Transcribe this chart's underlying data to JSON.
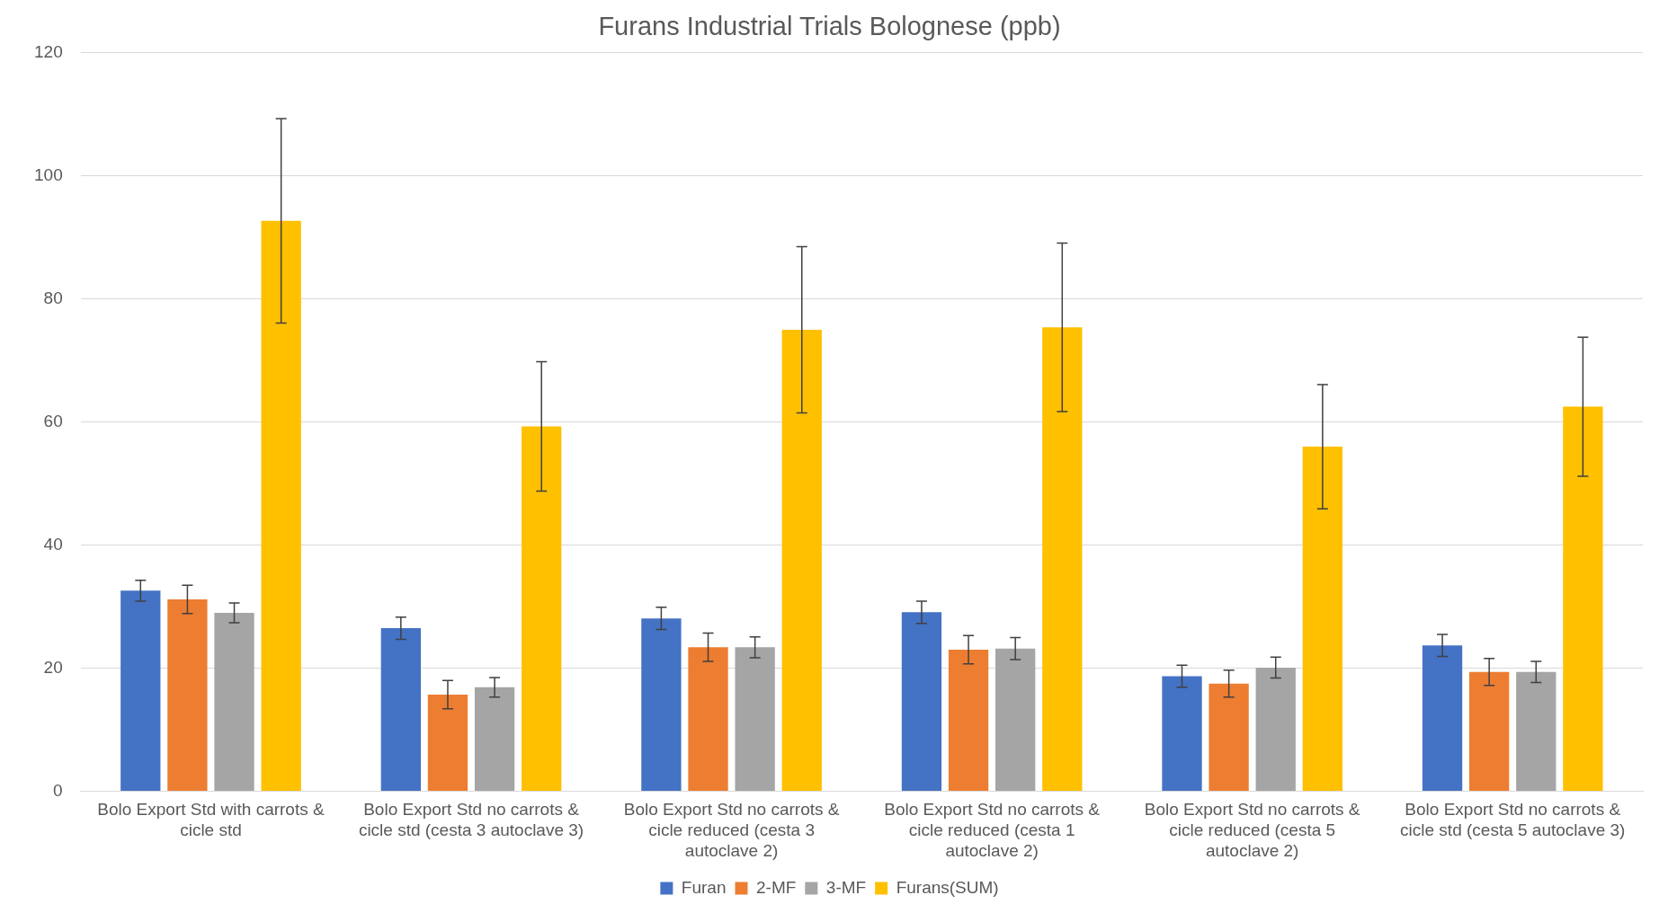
{
  "chart_data": {
    "type": "bar",
    "title": "Furans Industrial Trials Bolognese (ppb)",
    "categories": [
      "Bolo Export Std with carrots & cicle std",
      "Bolo Export Std no carrots & cicle std (cesta 3 autoclave 3)",
      "Bolo Export Std no carrots & cicle reduced (cesta 3 autoclave 2)",
      "Bolo Export Std no carrots & cicle reduced (cesta 1 autoclave 2)",
      "Bolo Export Std no carrots & cicle reduced (cesta 5 autoclave 2)",
      "Bolo Export Std no carrots & cicle std (cesta 5 autoclave 3)"
    ],
    "series": [
      {
        "name": "Furan",
        "color": "#4472c4",
        "values": [
          32.6,
          26.5,
          28.1,
          29.1,
          18.7,
          23.7
        ],
        "errors": [
          1.7,
          1.8,
          1.8,
          1.8,
          1.8,
          1.8
        ]
      },
      {
        "name": "2-MF",
        "color": "#ed7d31",
        "values": [
          31.2,
          15.7,
          23.4,
          23.0,
          17.5,
          19.4
        ],
        "errors": [
          2.3,
          2.3,
          2.3,
          2.3,
          2.2,
          2.2
        ]
      },
      {
        "name": "3-MF",
        "color": "#a5a5a5",
        "values": [
          29.0,
          16.9,
          23.4,
          23.2,
          20.1,
          19.4
        ],
        "errors": [
          1.6,
          1.6,
          1.7,
          1.8,
          1.7,
          1.7
        ]
      },
      {
        "name": "Furans(SUM)",
        "color": "#ffc000",
        "values": [
          92.7,
          59.3,
          75.0,
          75.4,
          56.0,
          62.5
        ],
        "errors": [
          16.6,
          10.5,
          13.5,
          13.7,
          10.1,
          11.3
        ]
      }
    ],
    "ylim": [
      0,
      120
    ],
    "yticks": [
      0,
      20,
      40,
      60,
      80,
      100,
      120
    ],
    "grid": "y",
    "legend": "bottom"
  }
}
